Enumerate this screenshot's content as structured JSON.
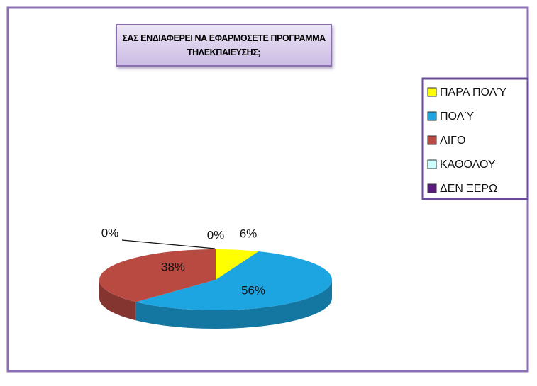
{
  "chart_data": {
    "type": "pie3d",
    "title": "ΣΑΣ ΕΝΔΙΑΦΕΡΕΙ ΝΑ ΕΦΑΡΜΟΣΕΤΕ ΠΡΟΓΡΑΜΜΑ ΤΗΛΕΚΠΑΙΕΥΣΗΣ;",
    "categories": [
      "ΠΑΡΑ ΠΟΛΎ",
      "ΠΟΛΎ",
      "ΛΙΓΟ",
      "ΚΑΘΟΛΟΥ",
      "ΔΕΝ ΞΕΡΩ"
    ],
    "values": [
      6,
      56,
      38,
      0,
      0
    ],
    "value_labels": [
      "6%",
      "56%",
      "38%",
      "0%",
      "0%"
    ],
    "colors": [
      "#ffff00",
      "#1ca5e0",
      "#b94a42",
      "#ccffff",
      "#5b1a7e"
    ],
    "legend": "right"
  }
}
